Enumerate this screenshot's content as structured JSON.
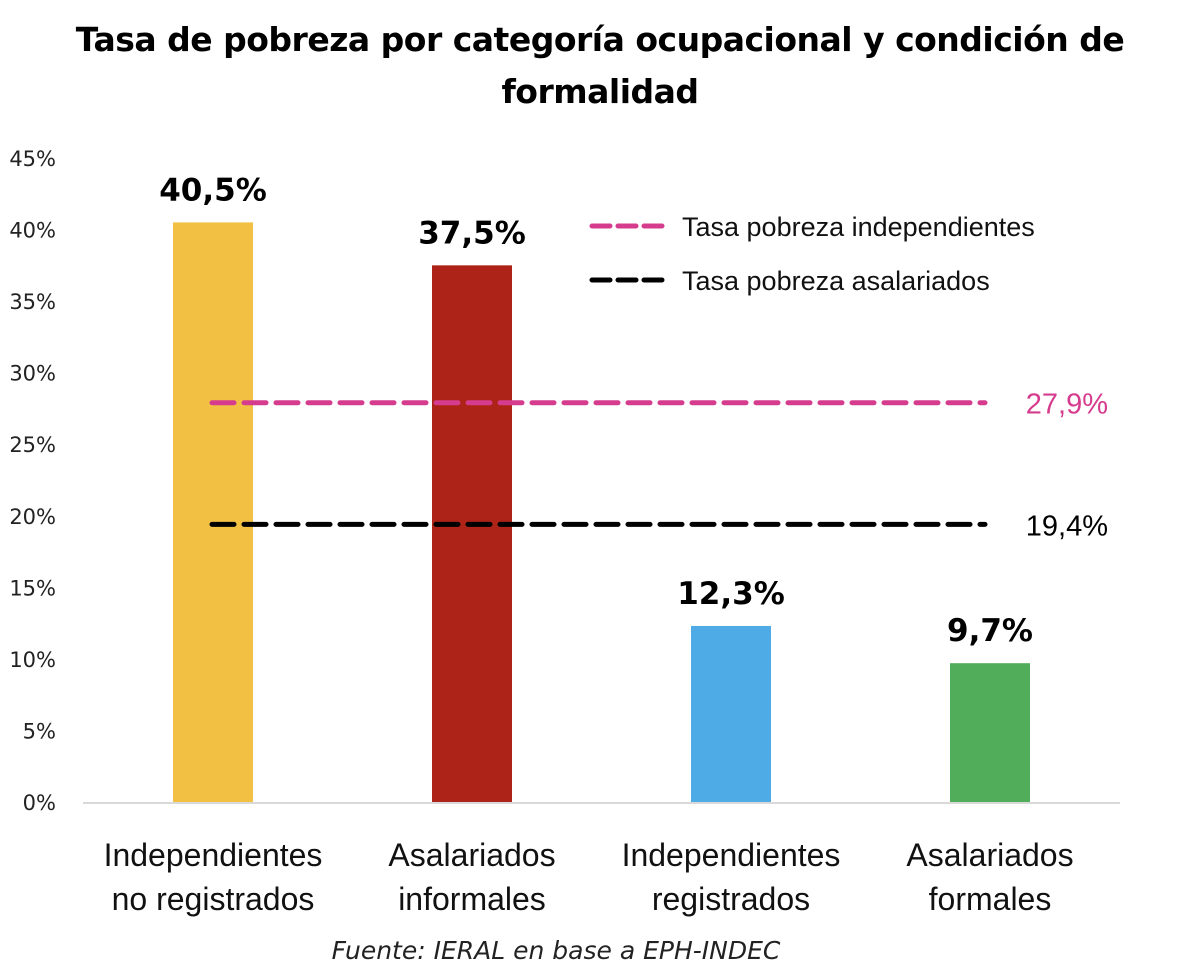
{
  "chart_data": {
    "type": "bar",
    "title_lines": [
      "Tasa de pobreza por categoría ocupacional y condición de",
      "formalidad"
    ],
    "title": "Tasa de pobreza por categoría ocupacional y condición de formalidad",
    "xlabel": "",
    "ylabel": "",
    "ylim": [
      0,
      45
    ],
    "yticks": [
      0,
      5,
      10,
      15,
      20,
      25,
      30,
      35,
      40,
      45
    ],
    "ytick_labels": [
      "0%",
      "5%",
      "10%",
      "15%",
      "20%",
      "25%",
      "30%",
      "35%",
      "40%",
      "45%"
    ],
    "grid": false,
    "categories": [
      [
        "Independientes",
        "no registrados"
      ],
      [
        "Asalariados",
        "informales"
      ],
      [
        "Independientes",
        "registrados"
      ],
      [
        "Asalariados",
        "formales"
      ]
    ],
    "values": [
      40.5,
      37.5,
      12.3,
      9.7
    ],
    "value_labels": [
      "40,5%",
      "37,5%",
      "12,3%",
      "9,7%"
    ],
    "bar_colors": [
      "#F2C043",
      "#AE2318",
      "#4FABE6",
      "#52AD5B"
    ],
    "reference_lines": [
      {
        "name": "Tasa pobreza independientes",
        "value": 27.9,
        "label": "27,9%",
        "color": "#D63C8E",
        "style": "dashed"
      },
      {
        "name": "Tasa pobreza asalariados",
        "value": 19.4,
        "label": "19,4%",
        "color": "#000000",
        "style": "dashed"
      }
    ],
    "legend": {
      "placement": "top-right",
      "entries": [
        "Tasa pobreza independientes",
        "Tasa pobreza asalariados"
      ]
    },
    "source": "Fuente: IERAL en base a EPH-INDEC"
  }
}
